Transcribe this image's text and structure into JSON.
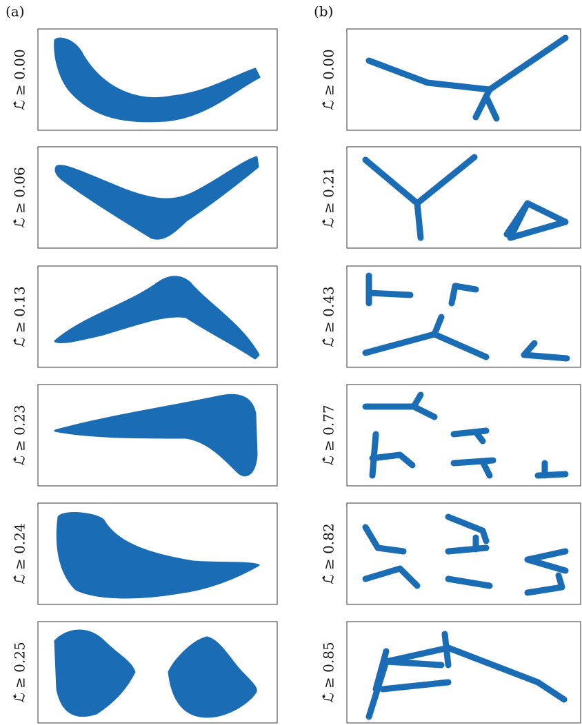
{
  "columns": [
    {
      "label": "(a)",
      "panels": [
        "ℒ̂ ≥ 0.00",
        "ℒ̂ ≥ 0.06",
        "ℒ̂ ≥ 0.13",
        "ℒ̂ ≥ 0.23",
        "ℒ̂ ≥ 0.24",
        "ℒ̂ ≥ 0.25"
      ]
    },
    {
      "label": "(b)",
      "panels": [
        "ℒ̂ ≥ 0.00",
        "ℒ̂ ≥ 0.21",
        "ℒ̂ ≥ 0.43",
        "ℒ̂ ≥ 0.77",
        "ℒ̂ ≥ 0.82",
        "ℒ̂ ≥ 0.85"
      ]
    }
  ]
}
